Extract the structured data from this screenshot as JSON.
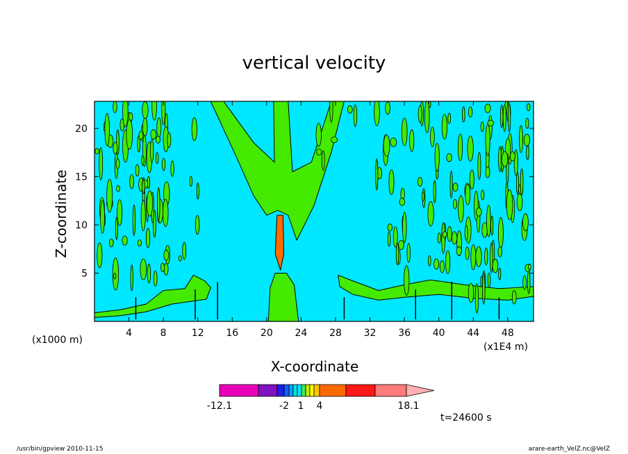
{
  "colors": {
    "background_field": "#00e8ff",
    "weak_updraft": "#44ea00",
    "strong_updraft": "#ff6a00",
    "contour": "#000000"
  },
  "chart_data": {
    "type": "heatmap",
    "title": "vertical velocity",
    "xlabel": "X-coordinate",
    "ylabel": "Z-coordinate",
    "x_unit_label": "(x1E4 m)",
    "y_unit_label": "(x1000 m)",
    "xlim": [
      0,
      51
    ],
    "ylim": [
      0,
      22.8
    ],
    "x_ticks": [
      4,
      8,
      12,
      16,
      20,
      24,
      28,
      32,
      36,
      40,
      44,
      48
    ],
    "y_ticks": [
      5,
      10,
      15,
      20
    ],
    "grid": false,
    "time_label": "t=24600 s",
    "colorbar": {
      "levels": [
        -12.1,
        -2,
        1,
        4,
        18.1
      ],
      "labels": [
        "-12.1",
        "-2",
        "1",
        "4",
        "18.1"
      ],
      "colors": [
        "#e800b8",
        "#8010c0",
        "#2020e0",
        "#1060ff",
        "#00a0ff",
        "#00e0e0",
        "#00e8ff",
        "#40e860",
        "#c0f000",
        "#ffff00",
        "#ffc800",
        "#ff6a00",
        "#ff1818",
        "#ff7a7a",
        "#ffb0b0"
      ]
    },
    "regions": [
      {
        "name": "inverted V updraft",
        "color": "weak_updraft",
        "points": [
          [
            13.5,
            22.8
          ],
          [
            29.0,
            22.8
          ],
          [
            27.5,
            17.5
          ],
          [
            25.5,
            12.0
          ],
          [
            23.5,
            8.4
          ],
          [
            22.5,
            11.0
          ],
          [
            21.3,
            11.5
          ],
          [
            20.0,
            11.0
          ],
          [
            18.5,
            13.0
          ],
          [
            16.5,
            17.0
          ]
        ]
      },
      {
        "name": "V inner left",
        "color": "background_field",
        "points": [
          [
            15.0,
            22.8
          ],
          [
            20.8,
            22.8
          ],
          [
            20.9,
            16.5
          ],
          [
            18.5,
            18.5
          ]
        ]
      },
      {
        "name": "V inner right",
        "color": "background_field",
        "points": [
          [
            22.5,
            22.8
          ],
          [
            27.5,
            22.8
          ],
          [
            25.2,
            16.5
          ],
          [
            23.0,
            15.5
          ]
        ]
      },
      {
        "name": "central updraft core",
        "color": "strong_updraft",
        "points": [
          [
            21.2,
            11.0
          ],
          [
            21.9,
            11.0
          ],
          [
            22.0,
            7.0
          ],
          [
            21.6,
            5.3
          ],
          [
            21.0,
            7.0
          ]
        ]
      },
      {
        "name": "left lower band",
        "color": "weak_updraft",
        "points": [
          [
            0,
            0.9
          ],
          [
            3,
            1.2
          ],
          [
            6,
            1.8
          ],
          [
            8,
            3.2
          ],
          [
            10.5,
            3.4
          ],
          [
            11.5,
            4.8
          ],
          [
            12.8,
            4.2
          ],
          [
            13.5,
            3.5
          ],
          [
            13,
            2.3
          ],
          [
            9,
            1.8
          ],
          [
            6,
            1.0
          ],
          [
            3,
            0.6
          ],
          [
            0,
            0.4
          ]
        ]
      },
      {
        "name": "central column base",
        "color": "weak_updraft",
        "points": [
          [
            20.2,
            0
          ],
          [
            23.7,
            0
          ],
          [
            23.2,
            3.8
          ],
          [
            22.3,
            5.0
          ],
          [
            21.0,
            5.0
          ],
          [
            20.4,
            3.5
          ]
        ]
      },
      {
        "name": "right lower band",
        "color": "weak_updraft",
        "points": [
          [
            28.3,
            4.8
          ],
          [
            30,
            4.2
          ],
          [
            33,
            3.2
          ],
          [
            36,
            3.8
          ],
          [
            39,
            4.3
          ],
          [
            43,
            3.8
          ],
          [
            47,
            3.4
          ],
          [
            51,
            3.6
          ],
          [
            51,
            2.6
          ],
          [
            48,
            2.2
          ],
          [
            44,
            2.4
          ],
          [
            40,
            2.8
          ],
          [
            36,
            2.5
          ],
          [
            33,
            2.2
          ],
          [
            30,
            2.8
          ],
          [
            28.5,
            3.6
          ]
        ]
      }
    ]
  },
  "footer": {
    "left": "/usr/bin/gpview   2010-11-15",
    "right": "arare-earth_VelZ.nc@VelZ"
  }
}
